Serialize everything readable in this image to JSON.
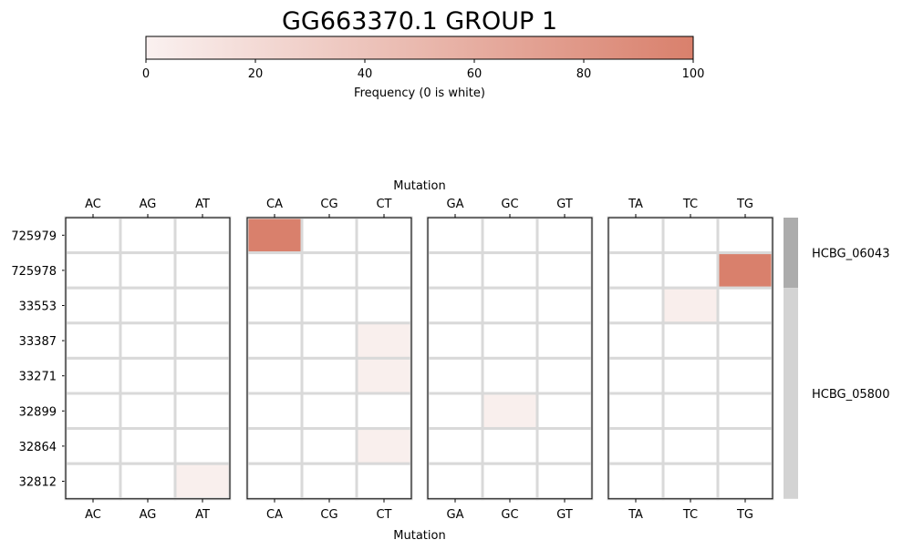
{
  "chart_data": {
    "type": "heatmap",
    "title": "GG663370.1 GROUP 1",
    "colorbar": {
      "label": "Frequency (0 is white)",
      "min": 0,
      "max": 100,
      "ticks": [
        0,
        20,
        40,
        60,
        80,
        100
      ],
      "color_low": "#faf1f0",
      "color_high": "#d9806c"
    },
    "x_axis_label": "Mutation",
    "panels": [
      {
        "columns": [
          "AC",
          "AG",
          "AT"
        ]
      },
      {
        "columns": [
          "CA",
          "CG",
          "CT"
        ]
      },
      {
        "columns": [
          "GA",
          "GC",
          "GT"
        ]
      },
      {
        "columns": [
          "TA",
          "TC",
          "TG"
        ]
      }
    ],
    "rows": [
      "725979",
      "725978",
      "33553",
      "33387",
      "33271",
      "32899",
      "32864",
      "32812"
    ],
    "values": [
      [
        0,
        0,
        0,
        100,
        0,
        0,
        0,
        0,
        0,
        0,
        0,
        0
      ],
      [
        0,
        0,
        0,
        0,
        0,
        0,
        0,
        0,
        0,
        0,
        0,
        100
      ],
      [
        0,
        0,
        0,
        0,
        0,
        0,
        0,
        0,
        0,
        0,
        3,
        0
      ],
      [
        0,
        0,
        0,
        0,
        0,
        2,
        0,
        0,
        0,
        0,
        0,
        0
      ],
      [
        0,
        0,
        0,
        0,
        0,
        2,
        0,
        0,
        0,
        0,
        0,
        0
      ],
      [
        0,
        0,
        0,
        0,
        0,
        0,
        0,
        2,
        0,
        0,
        0,
        0
      ],
      [
        0,
        0,
        0,
        0,
        0,
        2,
        0,
        0,
        0,
        0,
        0,
        0
      ],
      [
        0,
        0,
        2,
        0,
        0,
        0,
        0,
        0,
        0,
        0,
        0,
        0
      ]
    ],
    "gene_groups": [
      {
        "label": "HCBG_06043",
        "rows": [
          "725979",
          "725978"
        ],
        "color": "#acacac"
      },
      {
        "label": "HCBG_05800",
        "rows": [
          "33553",
          "33387",
          "33271",
          "32899",
          "32864",
          "32812"
        ],
        "color": "#d3d3d3"
      }
    ],
    "grid_color": "#d9d9d9"
  }
}
